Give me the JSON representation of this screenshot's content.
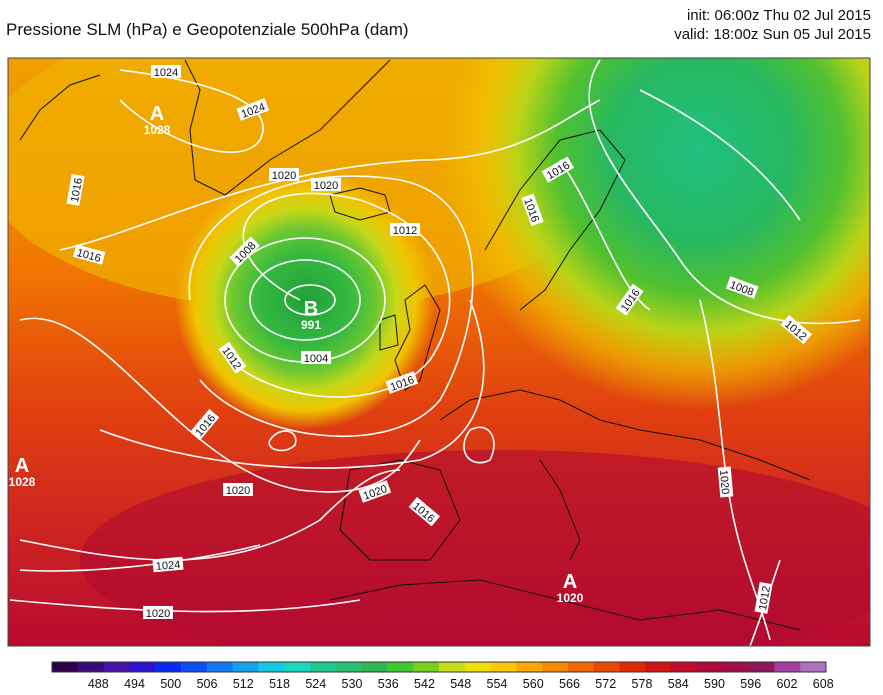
{
  "header": {
    "title": "Pressione SLM (hPa) e Geopotenziale 500hPa (dam)",
    "init": "init: 06:00z Thu 02 Jul 2015",
    "valid": "valid: 18:00z Sun 05 Jul 2015"
  },
  "pressure_centers": [
    {
      "letter": "A",
      "value": "1028"
    },
    {
      "letter": "B",
      "value": "991"
    },
    {
      "letter": "A",
      "value": "1028"
    },
    {
      "letter": "A",
      "value": "1020"
    }
  ],
  "isobar_labels": [
    "1024",
    "1024",
    "1020",
    "1016",
    "1016",
    "1020",
    "1016",
    "1012",
    "1008",
    "1004",
    "1012",
    "1016",
    "1016",
    "1020",
    "1020",
    "1016",
    "1024",
    "1020",
    "1016",
    "1008",
    "1012",
    "1016",
    "1020",
    "1012"
  ],
  "colorbar": {
    "ticks": [
      "488",
      "494",
      "500",
      "506",
      "512",
      "518",
      "524",
      "530",
      "536",
      "542",
      "548",
      "554",
      "560",
      "566",
      "572",
      "578",
      "584",
      "590",
      "596",
      "602",
      "608"
    ],
    "colors": [
      "#2d0048",
      "#3a0a7a",
      "#4512a8",
      "#2a12d0",
      "#0a28f0",
      "#0a50f5",
      "#1078f0",
      "#15a0ec",
      "#16c8e6",
      "#18d8c0",
      "#20c890",
      "#28c070",
      "#30b850",
      "#40c830",
      "#78d020",
      "#c8dc18",
      "#f0e000",
      "#f8c800",
      "#f8a800",
      "#f48a00",
      "#f06a00",
      "#e84a00",
      "#e02800",
      "#d01414",
      "#c00a28",
      "#b00a3c",
      "#a01048",
      "#8c1858",
      "#a040a0",
      "#b070c0"
    ]
  }
}
